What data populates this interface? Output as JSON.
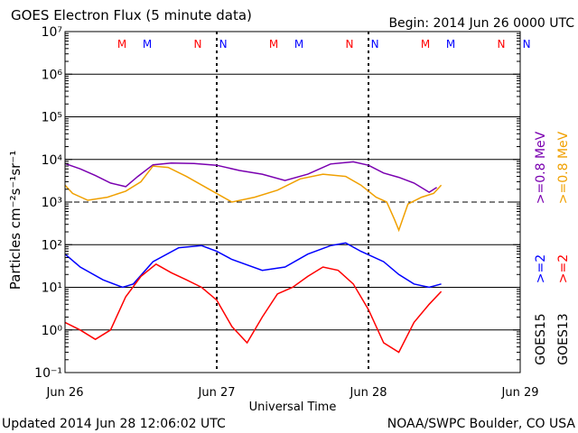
{
  "header": {
    "title": "GOES Electron Flux (5 minute data)",
    "begin": "Begin: 2014 Jun 26 0000 UTC"
  },
  "footer": {
    "updated": "Updated 2014 Jun 28 12:06:02 UTC",
    "credit": "NOAA/SWPC Boulder, CO USA"
  },
  "colors": {
    "goes15_08": "#7a00b0",
    "goes13_08": "#f0a000",
    "goes15_2": "#0000ff",
    "goes13_2": "#ff0000",
    "mn_goes13": "#ff0000",
    "mn_goes15": "#0000ff"
  },
  "chart_data": {
    "type": "line",
    "title": "GOES Electron Flux (5 minute data)",
    "xlabel": "Universal Time",
    "ylabel": "Particles cm⁻²s⁻¹sr⁻¹",
    "y_scale": "log",
    "ylim": [
      0.1,
      10000000
    ],
    "x_range_days": [
      0,
      3
    ],
    "x_ticks": [
      "Jun 26",
      "Jun 27",
      "Jun 28",
      "Jun 29"
    ],
    "y_ticks": [
      "10⁻¹",
      "10⁰",
      "10¹",
      "10²",
      "10³",
      "10⁴",
      "10⁵",
      "10⁶",
      "10⁷"
    ],
    "threshold": 1000,
    "midnight_noon_markers": [
      {
        "label": "M",
        "day": 0.375,
        "color": "red"
      },
      {
        "label": "M",
        "day": 0.542,
        "color": "blue"
      },
      {
        "label": "N",
        "day": 0.875,
        "color": "red"
      },
      {
        "label": "N",
        "day": 1.042,
        "color": "blue"
      },
      {
        "label": "M",
        "day": 1.375,
        "color": "red"
      },
      {
        "label": "M",
        "day": 1.542,
        "color": "blue"
      },
      {
        "label": "N",
        "day": 1.875,
        "color": "red"
      },
      {
        "label": "N",
        "day": 2.042,
        "color": "blue"
      },
      {
        "label": "M",
        "day": 2.375,
        "color": "red"
      },
      {
        "label": "M",
        "day": 2.542,
        "color": "blue"
      },
      {
        "label": "N",
        "day": 2.875,
        "color": "red"
      },
      {
        "label": "N",
        "day": 3.042,
        "color": "blue"
      }
    ],
    "right_labels": {
      "goes15_08": ">=0.8  MeV",
      "goes13_08": ">=0.8  MeV",
      "goes15_2": ">=2",
      "goes13_2": ">=2",
      "goes15": "GOES15",
      "goes13": "GOES13"
    },
    "series": [
      {
        "name": "GOES15 >=0.8 MeV",
        "color": "#7a00b0",
        "x": [
          0,
          0.1,
          0.2,
          0.3,
          0.4,
          0.48,
          0.58,
          0.7,
          0.85,
          1.0,
          1.15,
          1.3,
          1.45,
          1.6,
          1.75,
          1.9,
          2.0,
          2.1,
          2.2,
          2.3,
          2.4,
          2.45
        ],
        "y": [
          8000,
          6000,
          4200,
          2800,
          2300,
          4000,
          7500,
          8200,
          8000,
          7300,
          5500,
          4500,
          3200,
          4500,
          7800,
          8800,
          7300,
          4800,
          3800,
          2800,
          1700,
          2200
        ]
      },
      {
        "name": "GOES13 >=0.8 MeV",
        "color": "#f0a000",
        "x": [
          0,
          0.05,
          0.15,
          0.28,
          0.4,
          0.5,
          0.58,
          0.68,
          0.8,
          0.95,
          1.1,
          1.25,
          1.4,
          1.55,
          1.7,
          1.85,
          1.95,
          2.05,
          2.12,
          2.17,
          2.2,
          2.26,
          2.35,
          2.43,
          2.48
        ],
        "y": [
          2500,
          1600,
          1100,
          1300,
          1800,
          3000,
          7000,
          6500,
          4000,
          2000,
          1000,
          1300,
          1900,
          3500,
          4500,
          4000,
          2500,
          1300,
          1000,
          400,
          220,
          900,
          1300,
          1600,
          2500
        ]
      },
      {
        "name": "GOES15 >=2",
        "color": "#0000ff",
        "x": [
          0,
          0.1,
          0.25,
          0.38,
          0.45,
          0.58,
          0.75,
          0.9,
          1.0,
          1.1,
          1.3,
          1.45,
          1.6,
          1.75,
          1.85,
          1.95,
          2.1,
          2.2,
          2.3,
          2.4,
          2.48
        ],
        "y": [
          60,
          30,
          15,
          10,
          12,
          40,
          85,
          95,
          70,
          45,
          25,
          30,
          60,
          95,
          110,
          70,
          40,
          20,
          12,
          10,
          12
        ]
      },
      {
        "name": "GOES13 >=2",
        "color": "#ff0000",
        "x": [
          0,
          0.1,
          0.2,
          0.3,
          0.4,
          0.5,
          0.6,
          0.7,
          0.8,
          0.9,
          1.0,
          1.1,
          1.2,
          1.3,
          1.4,
          1.5,
          1.6,
          1.7,
          1.8,
          1.9,
          2.0,
          2.1,
          2.2,
          2.3,
          2.4,
          2.48
        ],
        "y": [
          1.5,
          1.0,
          0.6,
          1.0,
          6,
          18,
          35,
          22,
          15,
          10,
          5,
          1.2,
          0.5,
          2,
          7,
          10,
          18,
          30,
          25,
          12,
          3,
          0.5,
          0.3,
          1.5,
          4,
          8
        ]
      }
    ]
  }
}
